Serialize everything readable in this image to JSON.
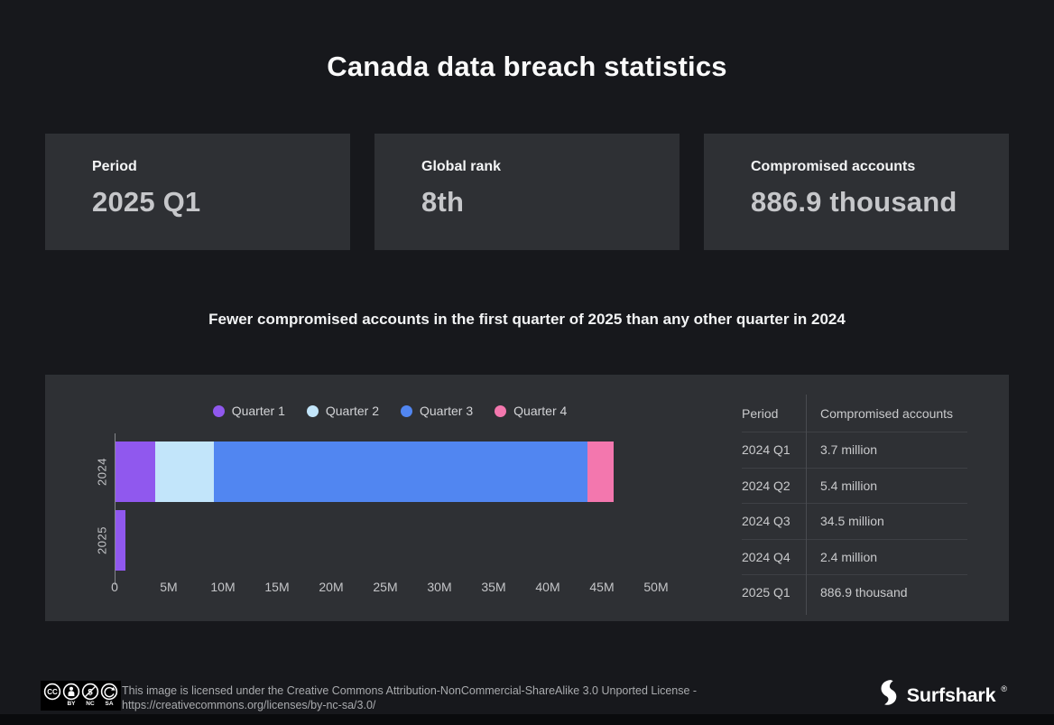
{
  "title": "Canada data breach statistics",
  "stats": [
    {
      "label": "Period",
      "value": "2025 Q1"
    },
    {
      "label": "Global rank",
      "value": "8th"
    },
    {
      "label": "Compromised accounts",
      "value": "886.9 thousand"
    }
  ],
  "subtitle": "Fewer compromised accounts in the first quarter of 2025 than any other quarter in 2024",
  "chart_data": {
    "type": "bar",
    "orientation": "horizontal",
    "stacked": true,
    "title": "",
    "xlabel": "",
    "ylabel": "",
    "categories": [
      "2024",
      "2025"
    ],
    "series": [
      {
        "name": "Quarter 1",
        "color": "#9058ee",
        "values": [
          3700000,
          886900
        ]
      },
      {
        "name": "Quarter 2",
        "color": "#c2e5fa",
        "values": [
          5400000,
          0
        ]
      },
      {
        "name": "Quarter 3",
        "color": "#5186f1",
        "values": [
          34500000,
          0
        ]
      },
      {
        "name": "Quarter 4",
        "color": "#f377ae",
        "values": [
          2400000,
          0
        ]
      }
    ],
    "xlim": [
      0,
      50000000
    ],
    "x_tick_values": [
      0,
      5000000,
      10000000,
      15000000,
      20000000,
      25000000,
      30000000,
      35000000,
      40000000,
      45000000,
      50000000
    ],
    "x_tick_labels": [
      "0",
      "5M",
      "10M",
      "15M",
      "20M",
      "25M",
      "30M",
      "35M",
      "40M",
      "45M",
      "50M"
    ],
    "grid": false,
    "legend_position": "top"
  },
  "table": {
    "headers": [
      "Period",
      "Compromised accounts"
    ],
    "rows": [
      {
        "period": "2024 Q1",
        "accounts": "3.7 million"
      },
      {
        "period": "2024 Q2",
        "accounts": "5.4 million"
      },
      {
        "period": "2024 Q3",
        "accounts": "34.5 million"
      },
      {
        "period": "2024 Q4",
        "accounts": "2.4 million"
      },
      {
        "period": "2025 Q1",
        "accounts": "886.9 thousand"
      }
    ]
  },
  "footer": {
    "license_line1": "This image is licensed under the Creative Commons Attribution-NonCommercial-ShareAlike 3.0 Unported License -",
    "license_line2": "https://creativecommons.org/licenses/by-nc-sa/3.0/",
    "cc_icons": [
      "cc-icon",
      "cc-by-icon",
      "cc-nc-icon",
      "cc-sa-icon"
    ],
    "cc_labels": [
      "BY",
      "NC",
      "SA"
    ],
    "brand": "Surfshark",
    "brand_mark": "®"
  },
  "colors": {
    "page_background": "#17181c",
    "panel_background": "#2e3034",
    "q1_purple": "#9058ee",
    "q2_lightblue": "#c2e5fa",
    "q3_blue": "#5186f1",
    "q4_pink": "#f377ae",
    "value_text": "#c6c7ca",
    "axis_text": "#c4c5c8"
  }
}
